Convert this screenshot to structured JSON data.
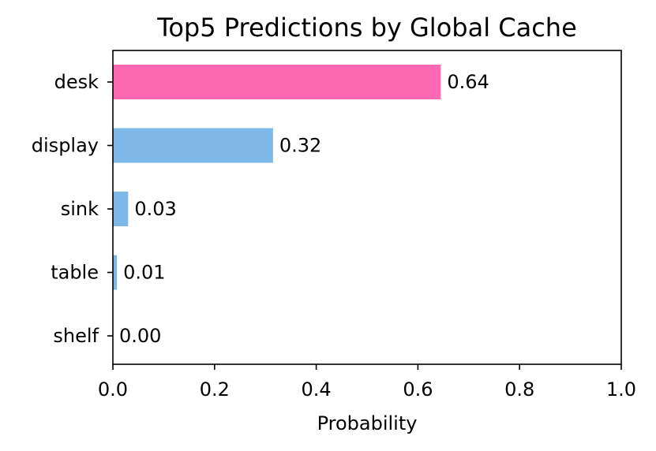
{
  "chart_data": {
    "type": "bar",
    "orientation": "horizontal",
    "title": "Top5 Predictions by Global Cache",
    "xlabel": "Probability",
    "ylabel": "",
    "xlim": [
      0.0,
      1.0
    ],
    "x_ticks": [
      "0.0",
      "0.2",
      "0.4",
      "0.6",
      "0.8",
      "1.0"
    ],
    "categories": [
      "desk",
      "display",
      "sink",
      "table",
      "shelf"
    ],
    "values": [
      0.645,
      0.315,
      0.03,
      0.008,
      0.0
    ],
    "value_labels": [
      "0.64",
      "0.32",
      "0.03",
      "0.01",
      "0.00"
    ],
    "bar_colors": [
      "#ff69b4",
      "#7eb8e8",
      "#7eb8e8",
      "#7eb8e8",
      "#7eb8e8"
    ],
    "grid": false,
    "legend": "none"
  }
}
